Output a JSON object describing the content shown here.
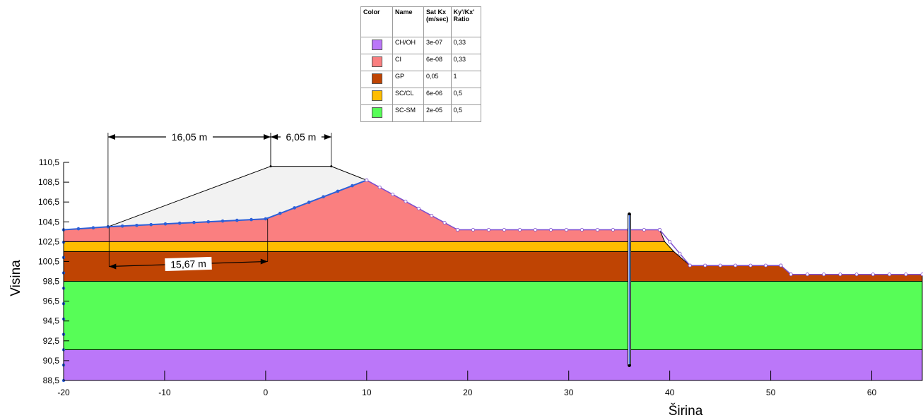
{
  "legend": {
    "headers": {
      "color": "Color",
      "name": "Name",
      "satkx_line1": "Sat Kx",
      "satkx_line2": "(m/sec)",
      "ratio_line1": "Ky'/Kx'",
      "ratio_line2": "Ratio"
    },
    "rows": [
      {
        "color": "#bb77f9",
        "name": "CH/OH",
        "satkx": "3e-07",
        "ratio": "0,33"
      },
      {
        "color": "#fa7f80",
        "name": "CI",
        "satkx": "6e-08",
        "ratio": "0,33"
      },
      {
        "color": "#bf4403",
        "name": "GP",
        "satkx": "0,05",
        "ratio": "1"
      },
      {
        "color": "#ffbd00",
        "name": "SC/CL",
        "satkx": "6e-06",
        "ratio": "0,5"
      },
      {
        "color": "#57fd57",
        "name": "SC-SM",
        "satkx": "2e-05",
        "ratio": "0,5"
      }
    ]
  },
  "chart_data": {
    "type": "cross-section",
    "xlabel": "Širina",
    "ylabel": "Visina",
    "xlim": [
      -20,
      65
    ],
    "ylim": [
      88.5,
      110.5
    ],
    "xticks": [
      -20,
      -10,
      0,
      10,
      20,
      30,
      40,
      50,
      60
    ],
    "yticks": [
      110.5,
      108.5,
      106.5,
      104.5,
      102.5,
      100.5,
      98.5,
      96.5,
      94.5,
      92.5,
      90.5,
      88.5
    ],
    "ytick_labels": [
      "110,5",
      "108,5",
      "106,5",
      "104,5",
      "102,5",
      "100,5",
      "98,5",
      "96,5",
      "94,5",
      "92,5",
      "90,5",
      "88,5"
    ],
    "layers": [
      {
        "name": "CH/OH",
        "polygon": [
          [
            -20,
            88.5
          ],
          [
            65,
            88.5
          ],
          [
            65,
            91.6
          ],
          [
            -20,
            91.6
          ]
        ]
      },
      {
        "name": "SC-SM",
        "polygon": [
          [
            -20,
            91.6
          ],
          [
            65,
            91.6
          ],
          [
            65,
            98.5
          ],
          [
            -20,
            98.5
          ]
        ]
      },
      {
        "name": "GP",
        "polygon": [
          [
            -20,
            98.5
          ],
          [
            65,
            98.5
          ],
          [
            65,
            99.2
          ],
          [
            52,
            99.2
          ],
          [
            51,
            100.1
          ],
          [
            42,
            100.1
          ],
          [
            40.4,
            101.5
          ],
          [
            -20,
            101.5
          ]
        ]
      },
      {
        "name": "SC/CL",
        "polygon": [
          [
            -20,
            101.5
          ],
          [
            40.4,
            101.5
          ],
          [
            39.5,
            102.5
          ],
          [
            -20,
            102.5
          ]
        ]
      },
      {
        "name": "CI",
        "polygon": [
          [
            -20,
            102.5
          ],
          [
            39.5,
            102.5
          ],
          [
            39,
            103.7
          ],
          [
            19,
            103.7
          ],
          [
            10,
            108.7
          ],
          [
            0,
            104.8
          ],
          [
            -15.6,
            104.0
          ],
          [
            -20,
            103.7
          ]
        ]
      }
    ],
    "embankment": [
      [
        -15.6,
        104.0
      ],
      [
        0.5,
        110.1
      ],
      [
        6.5,
        110.1
      ],
      [
        10,
        108.7
      ],
      [
        0,
        104.8
      ]
    ],
    "dimensions": [
      {
        "label": "16,05 m",
        "from": [
          -15.6,
          110.5
        ],
        "to": [
          0.5,
          110.5
        ]
      },
      {
        "label": "6,05 m",
        "from": [
          0.5,
          110.5
        ],
        "to": [
          6.5,
          110.5
        ]
      },
      {
        "label": "15,67 m",
        "from": [
          -15.5,
          100.0
        ],
        "to": [
          0.2,
          100.5
        ]
      }
    ],
    "well_x": 36
  }
}
